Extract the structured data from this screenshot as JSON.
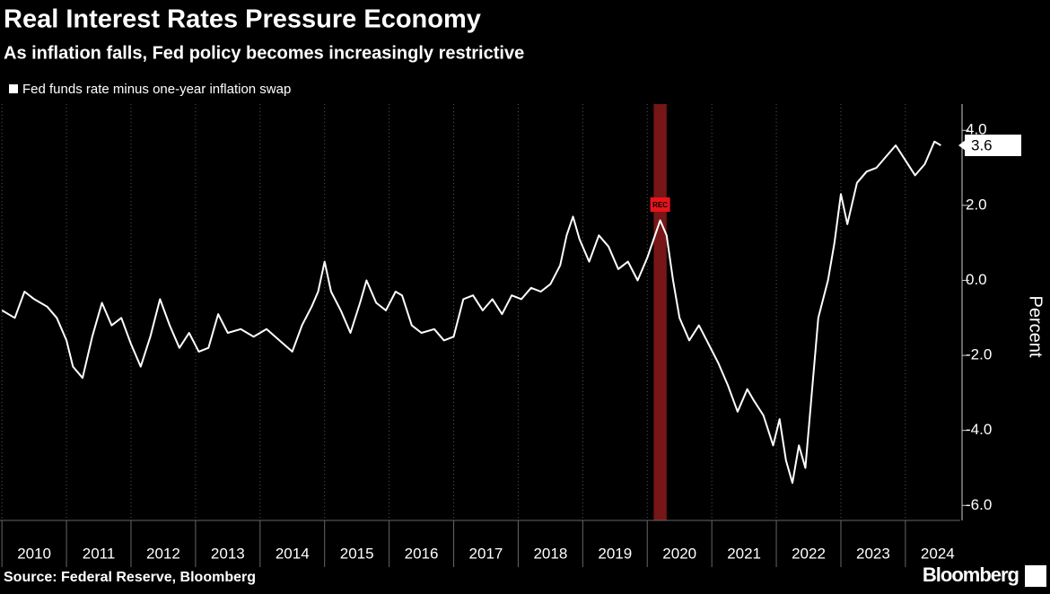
{
  "chart_data": {
    "type": "line",
    "title": "Real Interest Rates Pressure Economy",
    "subtitle": "As inflation falls, Fed policy becomes increasingly restrictive",
    "y_label": "Percent",
    "source": "Source: Federal Reserve, Bloomberg",
    "brand": "Bloomberg",
    "recession": {
      "start": 2020.1,
      "end": 2020.3,
      "label": "REC",
      "color": "#8b1a1a"
    },
    "x": [
      2010.0,
      2010.2,
      2010.35,
      2010.5,
      2010.7,
      2010.85,
      2011.0,
      2011.1,
      2011.25,
      2011.4,
      2011.55,
      2011.7,
      2011.85,
      2012.0,
      2012.15,
      2012.3,
      2012.45,
      2012.6,
      2012.75,
      2012.9,
      2013.05,
      2013.2,
      2013.35,
      2013.5,
      2013.7,
      2013.9,
      2014.1,
      2014.3,
      2014.5,
      2014.65,
      2014.8,
      2014.9,
      2015.0,
      2015.1,
      2015.25,
      2015.4,
      2015.55,
      2015.65,
      2015.8,
      2015.95,
      2016.1,
      2016.2,
      2016.35,
      2016.5,
      2016.7,
      2016.85,
      2017.0,
      2017.15,
      2017.3,
      2017.45,
      2017.6,
      2017.75,
      2017.9,
      2018.05,
      2018.2,
      2018.35,
      2018.5,
      2018.65,
      2018.75,
      2018.85,
      2018.95,
      2019.1,
      2019.25,
      2019.4,
      2019.55,
      2019.7,
      2019.85,
      2020.0,
      2020.1,
      2020.2,
      2020.3,
      2020.4,
      2020.5,
      2020.65,
      2020.8,
      2020.95,
      2021.1,
      2021.25,
      2021.4,
      2021.55,
      2021.65,
      2021.8,
      2021.95,
      2022.05,
      2022.15,
      2022.25,
      2022.35,
      2022.45,
      2022.55,
      2022.65,
      2022.8,
      2022.9,
      2023.0,
      2023.1,
      2023.25,
      2023.4,
      2023.55,
      2023.7,
      2023.85,
      2024.0,
      2024.15,
      2024.3,
      2024.45,
      2024.55
    ],
    "series": [
      {
        "name": "Fed funds rate minus one-year inflation swap",
        "color": "#ffffff",
        "values": [
          -0.8,
          -1.0,
          -0.3,
          -0.5,
          -0.7,
          -1.0,
          -1.6,
          -2.3,
          -2.6,
          -1.5,
          -0.6,
          -1.2,
          -1.0,
          -1.7,
          -2.3,
          -1.5,
          -0.5,
          -1.2,
          -1.8,
          -1.4,
          -1.9,
          -1.8,
          -0.9,
          -1.4,
          -1.3,
          -1.5,
          -1.3,
          -1.6,
          -1.9,
          -1.2,
          -0.7,
          -0.3,
          0.5,
          -0.3,
          -0.8,
          -1.4,
          -0.6,
          0.0,
          -0.6,
          -0.8,
          -0.3,
          -0.4,
          -1.2,
          -1.4,
          -1.3,
          -1.6,
          -1.5,
          -0.5,
          -0.4,
          -0.8,
          -0.5,
          -0.9,
          -0.4,
          -0.5,
          -0.2,
          -0.3,
          -0.1,
          0.4,
          1.2,
          1.7,
          1.1,
          0.5,
          1.2,
          0.9,
          0.3,
          0.5,
          0.0,
          0.6,
          1.1,
          1.6,
          1.2,
          0.0,
          -1.0,
          -1.6,
          -1.2,
          -1.7,
          -2.2,
          -2.8,
          -3.5,
          -2.9,
          -3.2,
          -3.6,
          -4.4,
          -3.7,
          -4.8,
          -5.4,
          -4.4,
          -5.0,
          -3.0,
          -1.0,
          0.0,
          1.0,
          2.3,
          1.5,
          2.6,
          2.9,
          3.0,
          3.3,
          3.6,
          3.2,
          2.8,
          3.1,
          3.7,
          3.6
        ]
      }
    ],
    "xlim": [
      2009.97,
      2024.85
    ],
    "xticks": [
      2010,
      2011,
      2012,
      2013,
      2014,
      2015,
      2016,
      2017,
      2018,
      2019,
      2020,
      2021,
      2022,
      2023,
      2024
    ],
    "ylim": [
      -6.4,
      4.7
    ],
    "yticks": [
      {
        "value": 4,
        "label": "4.0"
      },
      {
        "value": 2,
        "label": "2.0"
      },
      {
        "value": 0,
        "label": "0.0"
      },
      {
        "value": -2,
        "label": "-2.0"
      },
      {
        "value": -4,
        "label": "-4.0"
      },
      {
        "value": -6,
        "label": "-6.0"
      }
    ],
    "grid": true
  }
}
